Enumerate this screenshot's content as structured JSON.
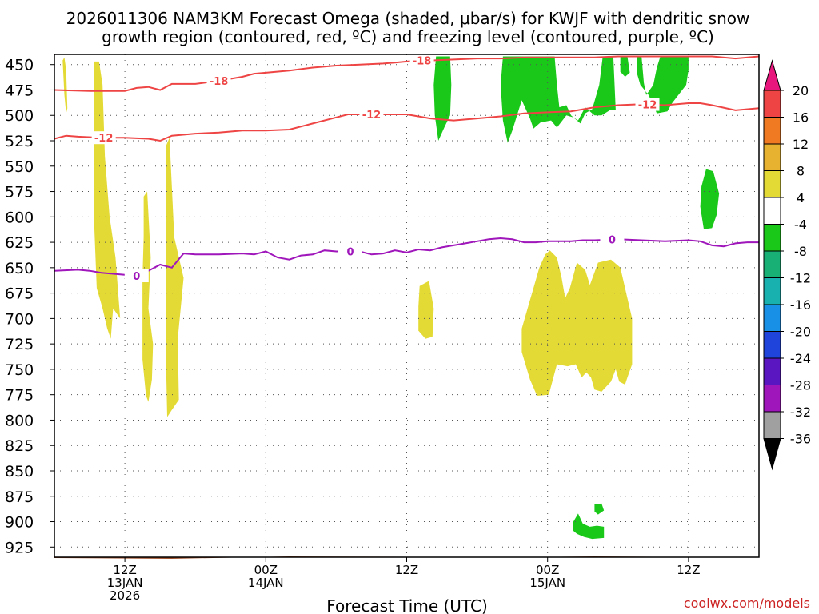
{
  "title_line1": "2026011306 NAM3KM Forecast Omega (shaded, μbar/s) for KWJF with dendritic snow",
  "title_line2": "growth region (contoured, red, ºC) and freezing level (contoured, purple, ºC)",
  "xlabel": "Forecast Time (UTC)",
  "credit": "coolwx.com/models",
  "chart_data": {
    "type": "time-height cross section",
    "x_unit": "forecast hour from 2026011306",
    "x_range": [
      0,
      60
    ],
    "y_unit": "hPa",
    "y_range": [
      440,
      935
    ],
    "y_ticks": [
      450,
      475,
      500,
      525,
      550,
      575,
      600,
      625,
      650,
      675,
      700,
      725,
      750,
      775,
      800,
      825,
      850,
      875,
      900,
      925
    ],
    "x_ticks": [
      {
        "hour": 6,
        "line1": "12Z",
        "line2": "13JAN",
        "line3": "2026"
      },
      {
        "hour": 18,
        "line1": "00Z",
        "line2": "14JAN",
        "line3": ""
      },
      {
        "hour": 30,
        "line1": "12Z",
        "line2": "",
        "line3": ""
      },
      {
        "hour": 42,
        "line1": "00Z",
        "line2": "15JAN",
        "line3": ""
      },
      {
        "hour": 54,
        "line1": "12Z",
        "line2": "",
        "line3": ""
      }
    ],
    "colorbar": {
      "labels": [
        "20",
        "16",
        "12",
        "8",
        "4",
        "-4",
        "-8",
        "-12",
        "-16",
        "-20",
        "-24",
        "-28",
        "-32",
        "-36"
      ],
      "colors": [
        "#e8177e",
        "#ee4444",
        "#ef7a22",
        "#e6b230",
        "#e4da36",
        "#ffffff",
        "#1ac81a",
        "#19b076",
        "#19b0b0",
        "#1890e6",
        "#1f44dc",
        "#5a16c0",
        "#9f16bb",
        "#a0a0a0",
        "#000000"
      ]
    },
    "contour_labels": {
      "dgz_upper": "-18",
      "dgz_lower": "-12",
      "freezing": "0"
    },
    "dgz_upper_contour": [
      [
        0,
        475
      ],
      [
        3,
        476
      ],
      [
        6,
        476
      ],
      [
        7,
        473
      ],
      [
        8,
        472
      ],
      [
        9,
        475
      ],
      [
        10,
        469
      ],
      [
        12,
        469
      ],
      [
        14,
        466
      ],
      [
        16,
        462
      ],
      [
        17,
        459
      ],
      [
        18,
        458
      ],
      [
        20,
        456
      ],
      [
        22,
        453
      ],
      [
        24,
        451
      ],
      [
        26,
        450
      ],
      [
        28,
        449
      ],
      [
        29,
        448
      ],
      [
        30,
        447
      ],
      [
        31,
        446
      ],
      [
        32,
        446
      ],
      [
        34,
        445
      ],
      [
        36,
        444
      ],
      [
        38,
        444
      ],
      [
        40,
        443
      ],
      [
        42,
        443
      ],
      [
        44,
        443
      ],
      [
        46,
        443
      ],
      [
        48,
        442
      ],
      [
        50,
        442
      ],
      [
        52,
        442
      ],
      [
        54,
        442
      ],
      [
        56,
        442
      ],
      [
        58,
        444
      ],
      [
        60,
        442
      ]
    ],
    "dgz_lower_contour": [
      [
        0,
        523
      ],
      [
        1,
        520
      ],
      [
        2,
        521
      ],
      [
        4,
        522
      ],
      [
        6,
        522
      ],
      [
        8,
        523
      ],
      [
        9,
        525
      ],
      [
        10,
        520
      ],
      [
        12,
        518
      ],
      [
        14,
        517
      ],
      [
        16,
        515
      ],
      [
        18,
        515
      ],
      [
        20,
        514
      ],
      [
        22,
        508
      ],
      [
        24,
        502
      ],
      [
        25,
        499
      ],
      [
        26,
        499
      ],
      [
        28,
        499
      ],
      [
        30,
        499
      ],
      [
        31,
        501
      ],
      [
        32,
        503
      ],
      [
        34,
        505
      ],
      [
        36,
        503
      ],
      [
        38,
        501
      ],
      [
        40,
        498
      ],
      [
        42,
        497
      ],
      [
        44,
        496
      ],
      [
        46,
        492
      ],
      [
        48,
        490
      ],
      [
        50,
        489
      ],
      [
        52,
        490
      ],
      [
        54,
        488
      ],
      [
        55,
        488
      ],
      [
        56,
        490
      ],
      [
        58,
        495
      ],
      [
        60,
        493
      ]
    ],
    "freezing_contour": [
      [
        0,
        653
      ],
      [
        2,
        652
      ],
      [
        3,
        653
      ],
      [
        4,
        655
      ],
      [
        6,
        657
      ],
      [
        7,
        658
      ],
      [
        8,
        653
      ],
      [
        9,
        647
      ],
      [
        10,
        650
      ],
      [
        11,
        636
      ],
      [
        12,
        637
      ],
      [
        14,
        637
      ],
      [
        16,
        636
      ],
      [
        17,
        637
      ],
      [
        18,
        634
      ],
      [
        19,
        640
      ],
      [
        20,
        642
      ],
      [
        21,
        638
      ],
      [
        22,
        637
      ],
      [
        23,
        633
      ],
      [
        24,
        634
      ],
      [
        26,
        634
      ],
      [
        27,
        637
      ],
      [
        28,
        636
      ],
      [
        29,
        633
      ],
      [
        30,
        635
      ],
      [
        31,
        632
      ],
      [
        32,
        633
      ],
      [
        33,
        630
      ],
      [
        35,
        626
      ],
      [
        36,
        624
      ],
      [
        37,
        622
      ],
      [
        38,
        621
      ],
      [
        39,
        622
      ],
      [
        40,
        625
      ],
      [
        41,
        625
      ],
      [
        42,
        624
      ],
      [
        44,
        624
      ],
      [
        45,
        623
      ],
      [
        46,
        623
      ],
      [
        48,
        622
      ],
      [
        50,
        623
      ],
      [
        52,
        624
      ],
      [
        54,
        623
      ],
      [
        55,
        624
      ],
      [
        56,
        628
      ],
      [
        57,
        629
      ],
      [
        58,
        626
      ],
      [
        59,
        625
      ],
      [
        60,
        625
      ]
    ],
    "omega_positive_regions_4_to_8": [
      [
        [
          0.7,
          446
        ],
        [
          0.85,
          443
        ],
        [
          1.0,
          455
        ],
        [
          1.1,
          493
        ],
        [
          1.0,
          498
        ],
        [
          0.85,
          480
        ]
      ],
      [
        [
          3.4,
          447
        ],
        [
          3.8,
          447
        ],
        [
          4.1,
          470
        ],
        [
          4.3,
          540
        ],
        [
          4.7,
          600
        ],
        [
          5.2,
          640
        ],
        [
          5.6,
          700
        ],
        [
          5.0,
          690
        ],
        [
          4.8,
          720
        ],
        [
          4.5,
          710
        ],
        [
          4.1,
          690
        ],
        [
          3.6,
          670
        ],
        [
          3.4,
          610
        ],
        [
          3.4,
          570
        ]
      ],
      [
        [
          7.6,
          580
        ],
        [
          7.9,
          575
        ],
        [
          8.2,
          640
        ],
        [
          8.0,
          690
        ],
        [
          8.4,
          725
        ],
        [
          8.3,
          760
        ],
        [
          8.0,
          782
        ],
        [
          7.8,
          776
        ],
        [
          7.5,
          740
        ],
        [
          7.5,
          660
        ],
        [
          7.6,
          620
        ]
      ],
      [
        [
          9.5,
          530
        ],
        [
          9.8,
          522
        ],
        [
          10.0,
          570
        ],
        [
          10.2,
          620
        ],
        [
          11.0,
          660
        ],
        [
          10.5,
          720
        ],
        [
          10.6,
          780
        ],
        [
          10.0,
          790
        ],
        [
          9.6,
          797
        ],
        [
          9.5,
          740
        ],
        [
          9.5,
          670
        ]
      ],
      [
        [
          31.1,
          668
        ],
        [
          31.9,
          663
        ],
        [
          32.3,
          690
        ],
        [
          32.2,
          718
        ],
        [
          31.6,
          720
        ],
        [
          31.0,
          712
        ],
        [
          31.0,
          688
        ]
      ],
      [
        [
          42.2,
          633
        ],
        [
          42.8,
          640
        ],
        [
          43.2,
          660
        ],
        [
          43.5,
          680
        ],
        [
          43.9,
          670
        ],
        [
          44.5,
          645
        ],
        [
          45.2,
          652
        ],
        [
          45.6,
          667
        ],
        [
          46.3,
          645
        ],
        [
          47.4,
          642
        ],
        [
          48.2,
          650
        ],
        [
          48.8,
          680
        ],
        [
          49.2,
          700
        ],
        [
          49.2,
          745
        ],
        [
          48.8,
          758
        ],
        [
          48.6,
          765
        ],
        [
          48.1,
          762
        ],
        [
          47.8,
          750
        ],
        [
          47.4,
          762
        ],
        [
          46.6,
          772
        ],
        [
          46.0,
          770
        ],
        [
          45.7,
          758
        ],
        [
          45.3,
          753
        ],
        [
          44.9,
          758
        ],
        [
          44.4,
          745
        ],
        [
          43.7,
          747
        ],
        [
          42.8,
          745
        ],
        [
          42.1,
          775
        ],
        [
          41.1,
          776
        ],
        [
          40.5,
          760
        ],
        [
          39.8,
          733
        ],
        [
          39.8,
          710
        ],
        [
          40.3,
          690
        ],
        [
          40.8,
          670
        ],
        [
          41.3,
          650
        ],
        [
          41.8,
          637
        ]
      ]
    ],
    "omega_negative_regions_-4_to_-8": [
      [
        [
          32.5,
          442
        ],
        [
          33.7,
          442
        ],
        [
          33.8,
          470
        ],
        [
          33.7,
          500
        ],
        [
          33.2,
          512
        ],
        [
          32.7,
          525
        ],
        [
          32.4,
          500
        ],
        [
          32.3,
          470
        ]
      ],
      [
        [
          38.2,
          442
        ],
        [
          42.6,
          442
        ],
        [
          42.8,
          470
        ],
        [
          43.0,
          492
        ],
        [
          43.6,
          490
        ],
        [
          44.0,
          500
        ],
        [
          44.8,
          508
        ],
        [
          45.2,
          498
        ],
        [
          45.8,
          494
        ],
        [
          46.4,
          470
        ],
        [
          46.7,
          442
        ],
        [
          47.6,
          442
        ],
        [
          47.8,
          495
        ],
        [
          47.3,
          495
        ],
        [
          46.6,
          500
        ],
        [
          46.0,
          500
        ],
        [
          45.2,
          492
        ],
        [
          44.6,
          505
        ],
        [
          44.2,
          502
        ],
        [
          43.6,
          500
        ],
        [
          42.8,
          512
        ],
        [
          42.3,
          505
        ],
        [
          41.4,
          507
        ],
        [
          40.8,
          513
        ],
        [
          40.5,
          503
        ],
        [
          39.8,
          485
        ],
        [
          39.0,
          515
        ],
        [
          38.6,
          527
        ],
        [
          38.2,
          505
        ],
        [
          38.0,
          470
        ]
      ],
      [
        [
          48.2,
          442
        ],
        [
          48.8,
          442
        ],
        [
          49.0,
          458
        ],
        [
          48.6,
          462
        ],
        [
          48.2,
          457
        ]
      ],
      [
        [
          49.6,
          442
        ],
        [
          50.0,
          442
        ],
        [
          50.2,
          468
        ],
        [
          50.4,
          480
        ],
        [
          51.0,
          470
        ],
        [
          51.3,
          453
        ],
        [
          51.6,
          442
        ],
        [
          54.0,
          442
        ],
        [
          54.0,
          455
        ],
        [
          53.8,
          470
        ],
        [
          53.0,
          482
        ],
        [
          52.6,
          488
        ],
        [
          52.2,
          496
        ],
        [
          51.3,
          498
        ],
        [
          50.6,
          480
        ],
        [
          49.9,
          470
        ],
        [
          49.6,
          458
        ]
      ],
      [
        [
          55.5,
          553
        ],
        [
          56.1,
          555
        ],
        [
          56.6,
          577
        ],
        [
          56.4,
          598
        ],
        [
          56.0,
          611
        ],
        [
          55.3,
          612
        ],
        [
          55.0,
          590
        ],
        [
          55.1,
          570
        ]
      ],
      [
        [
          44.2,
          900
        ],
        [
          44.6,
          892
        ],
        [
          45.0,
          902
        ],
        [
          45.6,
          905
        ],
        [
          46.2,
          904
        ],
        [
          46.8,
          905
        ],
        [
          46.8,
          916
        ],
        [
          45.8,
          917
        ],
        [
          45.1,
          915
        ],
        [
          44.5,
          912
        ],
        [
          44.2,
          909
        ]
      ],
      [
        [
          46.0,
          883
        ],
        [
          46.6,
          882
        ],
        [
          46.8,
          889
        ],
        [
          46.3,
          893
        ],
        [
          46.0,
          890
        ]
      ]
    ],
    "terrain_surface_hpa": 935
  }
}
